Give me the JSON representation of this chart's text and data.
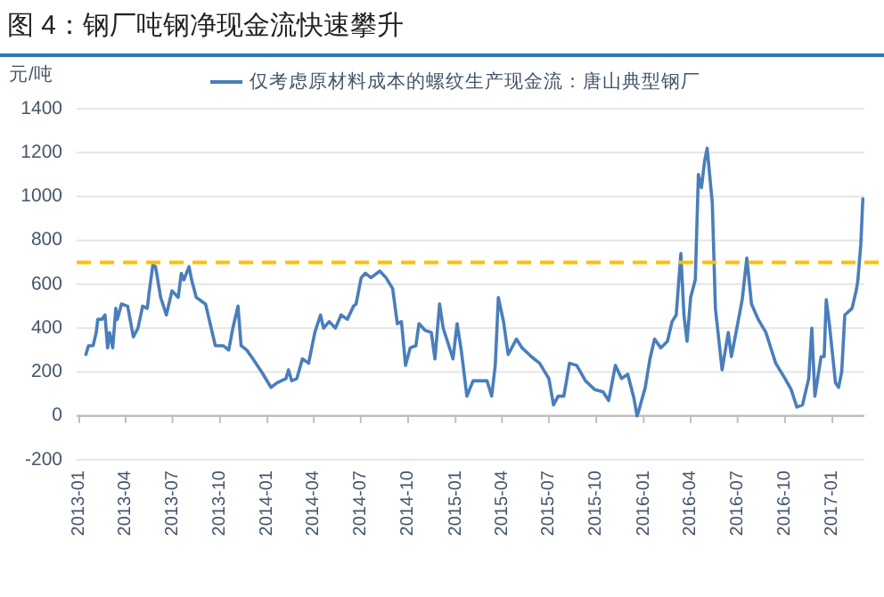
{
  "chart_data": {
    "type": "line",
    "title": "图 4：钢厂吨钢净现金流快速攀升",
    "ylabel": "元/吨",
    "legend": "top",
    "grid": "y",
    "xlim": [
      "2012-12-27",
      "2017-03-04"
    ],
    "xticks": [
      "2013-01",
      "2013-04",
      "2013-07",
      "2013-10",
      "2014-01",
      "2014-04",
      "2014-07",
      "2014-10",
      "2015-01",
      "2015-04",
      "2015-07",
      "2015-10",
      "2016-01",
      "2016-04",
      "2016-07",
      "2016-10",
      "2017-01"
    ],
    "ylim": [
      -200,
      1400
    ],
    "yticks": [
      -200,
      0,
      200,
      400,
      600,
      800,
      1000,
      1200,
      1400
    ],
    "ref_lines": [
      {
        "axis": "y",
        "value": 700,
        "color": "#ffc000",
        "line_style": "dashed"
      }
    ],
    "series": [
      {
        "name": "仅考虑原材料成本的螺纹生产现金流：唐山典型钢厂",
        "color": "#4a7ebb",
        "line_style": "solid",
        "x": [
          "2013-01-14",
          "2013-01-19",
          "2013-01-28",
          "2013-02-03",
          "2013-02-06",
          "2013-02-14",
          "2013-02-20",
          "2013-02-25",
          "2013-03-01",
          "2013-03-07",
          "2013-03-13",
          "2013-03-16",
          "2013-03-24",
          "2013-04-05",
          "2013-04-16",
          "2013-04-25",
          "2013-05-04",
          "2013-05-13",
          "2013-05-17",
          "2013-05-24",
          "2013-05-29",
          "2013-06-08",
          "2013-06-19",
          "2013-06-30",
          "2013-07-12",
          "2013-07-18",
          "2013-07-23",
          "2013-08-02",
          "2013-08-07",
          "2013-08-16",
          "2013-09-03",
          "2013-09-14",
          "2013-09-22",
          "2013-10-07",
          "2013-10-18",
          "2013-10-26",
          "2013-11-05",
          "2013-11-11",
          "2013-11-22",
          "2013-12-04",
          "2013-12-21",
          "2014-01-08",
          "2014-01-19",
          "2014-02-06",
          "2014-02-11",
          "2014-02-17",
          "2014-02-27",
          "2014-03-10",
          "2014-03-22",
          "2014-04-03",
          "2014-04-14",
          "2014-04-20",
          "2014-05-01",
          "2014-05-13",
          "2014-05-24",
          "2014-06-05",
          "2014-06-17",
          "2014-06-22",
          "2014-07-02",
          "2014-07-10",
          "2014-07-21",
          "2014-08-07",
          "2014-08-19",
          "2014-09-01",
          "2014-09-10",
          "2014-09-18",
          "2014-09-26",
          "2014-10-05",
          "2014-10-16",
          "2014-10-22",
          "2014-11-03",
          "2014-11-15",
          "2014-11-22",
          "2014-12-01",
          "2014-12-08",
          "2014-12-19",
          "2014-12-27",
          "2015-01-04",
          "2015-01-12",
          "2015-01-23",
          "2015-02-04",
          "2015-03-03",
          "2015-03-12",
          "2015-03-19",
          "2015-03-25",
          "2015-04-04",
          "2015-04-13",
          "2015-04-29",
          "2015-05-10",
          "2015-05-28",
          "2015-06-13",
          "2015-07-01",
          "2015-07-10",
          "2015-07-19",
          "2015-07-30",
          "2015-08-10",
          "2015-08-24",
          "2015-09-10",
          "2015-09-28",
          "2015-10-14",
          "2015-10-25",
          "2015-11-07",
          "2015-11-19",
          "2015-12-01",
          "2015-12-13",
          "2015-12-19",
          "2015-12-22",
          "2016-01-04",
          "2016-01-13",
          "2016-01-22",
          "2016-02-03",
          "2016-02-16",
          "2016-02-25",
          "2016-03-04",
          "2016-03-13",
          "2016-03-19",
          "2016-03-25",
          "2016-04-01",
          "2016-04-10",
          "2016-04-16",
          "2016-04-22",
          "2016-04-28",
          "2016-05-03",
          "2016-05-13",
          "2016-05-19",
          "2016-06-01",
          "2016-06-13",
          "2016-06-19",
          "2016-06-28",
          "2016-07-10",
          "2016-07-19",
          "2016-07-28",
          "2016-08-10",
          "2016-08-25",
          "2016-09-13",
          "2016-10-01",
          "2016-10-13",
          "2016-10-24",
          "2016-11-04",
          "2016-11-16",
          "2016-11-22",
          "2016-11-28",
          "2016-12-10",
          "2016-12-16",
          "2016-12-20",
          "2016-12-26",
          "2017-01-07",
          "2017-01-13",
          "2017-01-19",
          "2017-01-25",
          "2017-02-08",
          "2017-02-16",
          "2017-02-19",
          "2017-02-25",
          "2017-03-01"
        ],
        "values": [
          280,
          320,
          320,
          380,
          440,
          440,
          460,
          310,
          380,
          310,
          490,
          440,
          510,
          500,
          360,
          400,
          500,
          490,
          570,
          690,
          680,
          540,
          460,
          570,
          540,
          650,
          620,
          680,
          620,
          540,
          510,
          400,
          320,
          320,
          300,
          400,
          500,
          320,
          300,
          260,
          200,
          130,
          150,
          170,
          210,
          160,
          170,
          260,
          240,
          380,
          460,
          400,
          430,
          400,
          460,
          440,
          500,
          510,
          630,
          650,
          630,
          660,
          630,
          580,
          420,
          430,
          230,
          310,
          320,
          420,
          390,
          380,
          260,
          510,
          400,
          320,
          260,
          420,
          300,
          90,
          160,
          160,
          90,
          230,
          540,
          430,
          280,
          350,
          310,
          270,
          240,
          170,
          50,
          90,
          90,
          240,
          230,
          160,
          120,
          110,
          70,
          230,
          170,
          190,
          80,
          0,
          20,
          130,
          260,
          350,
          310,
          340,
          430,
          460,
          740,
          460,
          340,
          540,
          620,
          1100,
          1040,
          1160,
          1220,
          970,
          490,
          210,
          380,
          270,
          380,
          530,
          720,
          510,
          440,
          380,
          240,
          170,
          120,
          40,
          50,
          170,
          400,
          90,
          270,
          270,
          530,
          420,
          150,
          130,
          200,
          460,
          490,
          570,
          610,
          780,
          990
        ]
      }
    ]
  }
}
